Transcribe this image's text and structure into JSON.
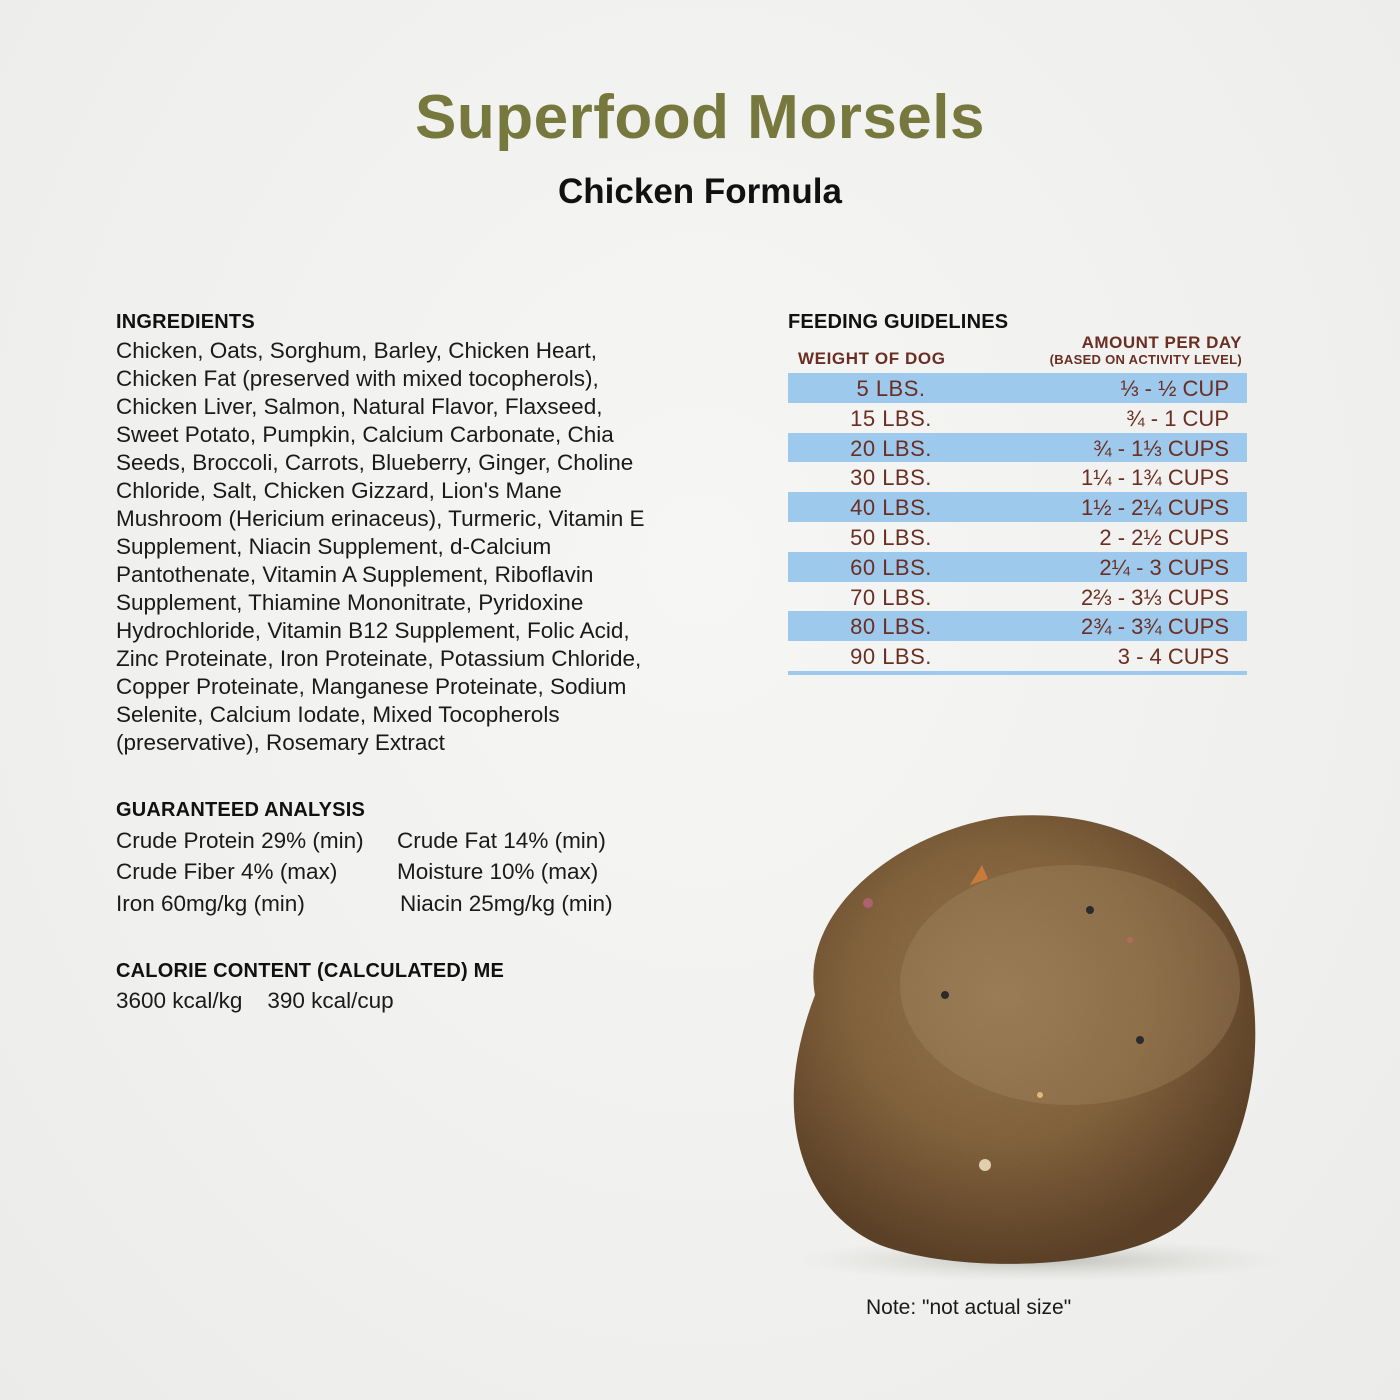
{
  "header": {
    "title": "Superfood Morsels",
    "subtitle": "Chicken Formula"
  },
  "ingredients": {
    "heading": "INGREDIENTS",
    "lines": [
      "Chicken, Oats, Sorghum, Barley, Chicken Heart,",
      "Chicken Fat (preserved with mixed tocopherols),",
      "Chicken Liver, Salmon, Natural Flavor, Flaxseed,",
      "Sweet Potato, Pumpkin, Calcium Carbonate, Chia",
      "Seeds, Broccoli, Carrots, Blueberry, Ginger, Choline",
      "Chloride, Salt, Chicken Gizzard, Lion's Mane",
      "Mushroom (Hericium erinaceus), Turmeric, Vitamin E",
      "Supplement, Niacin Supplement, d-Calcium",
      "Pantothenate, Vitamin A Supplement, Riboflavin",
      "Supplement, Thiamine Mononitrate, Pyridoxine",
      "Hydrochloride, Vitamin B12 Supplement, Folic Acid,",
      "Zinc Proteinate, Iron Proteinate, Potassium Chloride,",
      "Copper Proteinate, Manganese Proteinate, Sodium",
      "Selenite, Calcium Iodate, Mixed Tocopherols",
      "(preservative), Rosemary Extract"
    ]
  },
  "guaranteed_analysis": {
    "heading": "GUARANTEED ANALYSIS",
    "rows": [
      [
        "Crude Protein 29% (min)",
        "Crude Fat 14% (min)"
      ],
      [
        "Crude Fiber 4% (max)",
        "Moisture 10% (max)"
      ],
      [
        "Iron 60mg/kg (min)",
        "Niacin 25mg/kg (min)"
      ]
    ]
  },
  "calorie_content": {
    "heading": "CALORIE CONTENT (CALCULATED) ME",
    "value": "3600 kcal/kg    390 kcal/cup"
  },
  "feeding_guidelines": {
    "heading": "FEEDING GUIDELINES",
    "col_weight": "WEIGHT OF DOG",
    "col_amount": "AMOUNT PER DAY",
    "col_amount_note": "(BASED ON ACTIVITY LEVEL)",
    "rows": [
      {
        "weight": "5 LBS.",
        "amount": "⅓ - ½ CUP"
      },
      {
        "weight": "15 LBS.",
        "amount": "¾ - 1 CUP"
      },
      {
        "weight": "20 LBS.",
        "amount": "¾ - 1⅓ CUPS"
      },
      {
        "weight": "30 LBS.",
        "amount": "1¼ - 1¾ CUPS"
      },
      {
        "weight": "40 LBS.",
        "amount": "1½ - 2¼ CUPS"
      },
      {
        "weight": "50 LBS.",
        "amount": "2 - 2½ CUPS"
      },
      {
        "weight": "60 LBS.",
        "amount": "2¼ - 3 CUPS"
      },
      {
        "weight": "70 LBS.",
        "amount": "2⅔ - 3⅓ CUPS"
      },
      {
        "weight": "80 LBS.",
        "amount": "2¾ - 3¾ CUPS"
      },
      {
        "weight": "90 LBS.",
        "amount": "3 - 4 CUPS"
      }
    ],
    "row_shade_color": "#9cc9ec",
    "text_color": "#6b2e22"
  },
  "photo_note": "Note: \"not actual size\"",
  "colors": {
    "title": "#76783d",
    "morsel": "#8a6a45"
  }
}
